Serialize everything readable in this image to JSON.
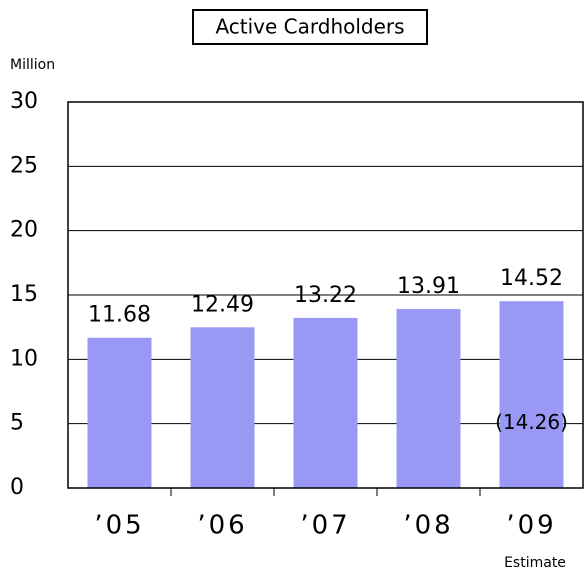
{
  "chart_data": {
    "type": "bar",
    "title": "Active Cardholders",
    "y_label": "Million",
    "categories": [
      "’05",
      "’06",
      "’07",
      "’08",
      "’09"
    ],
    "values": [
      11.68,
      12.49,
      13.22,
      13.91,
      14.52
    ],
    "color": "#9999f5",
    "ylim": [
      0,
      30
    ],
    "yticks": [
      0,
      5,
      10,
      15,
      20,
      25,
      30
    ],
    "grid": true,
    "annotation": "(14.26)",
    "note": "Estimate"
  }
}
